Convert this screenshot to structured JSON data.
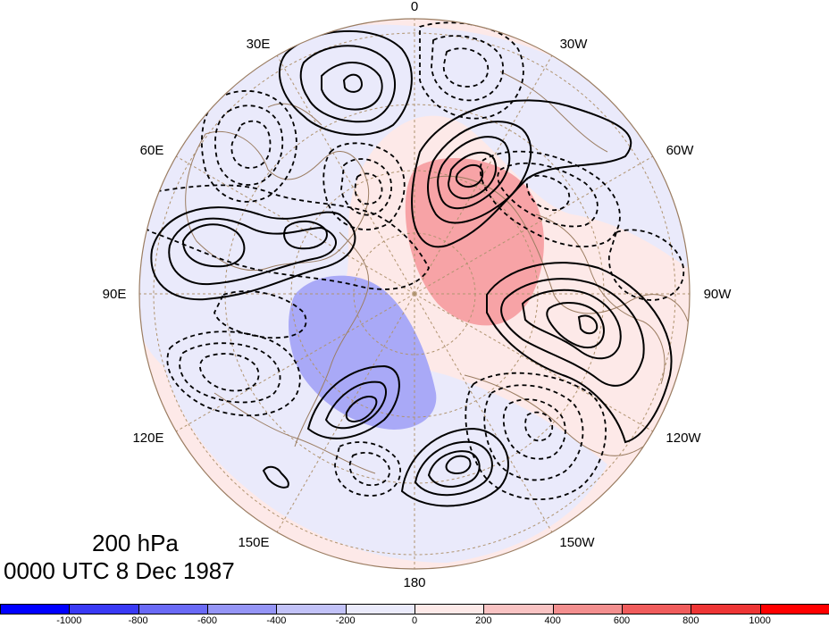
{
  "map": {
    "projection": "north-polar-stereographic",
    "longitude_labels": [
      "0",
      "30W",
      "60W",
      "90W",
      "120W",
      "150W",
      "180",
      "150E",
      "120E",
      "90E",
      "60E",
      "30E"
    ],
    "colors": {
      "positive_shade": "#f7a3a6",
      "negative_shade": "#a9a9f7",
      "weak_positive": "#fde9e8",
      "weak_negative": "#eaeafb",
      "coastline": "#9b7d62",
      "graticule": "#b09470",
      "contour": "#000000"
    },
    "contours": {
      "positive_style": "solid",
      "negative_style": "dashed"
    }
  },
  "title": {
    "level": "200 hPa",
    "time": "0000 UTC 8 Dec 1987"
  },
  "colorbar": {
    "labels": [
      "-1000",
      "-800",
      "-600",
      "-400",
      "-200",
      "0",
      "200",
      "400",
      "600",
      "800",
      "1000"
    ],
    "colors": [
      "#0000ff",
      "#3a3af5",
      "#6a6af6",
      "#9595f6",
      "#c2c2f8",
      "#eaeafb",
      "#fde9e8",
      "#f9c3c3",
      "#f38f8f",
      "#f05c5c",
      "#ee3535",
      "#ff0000"
    ]
  }
}
